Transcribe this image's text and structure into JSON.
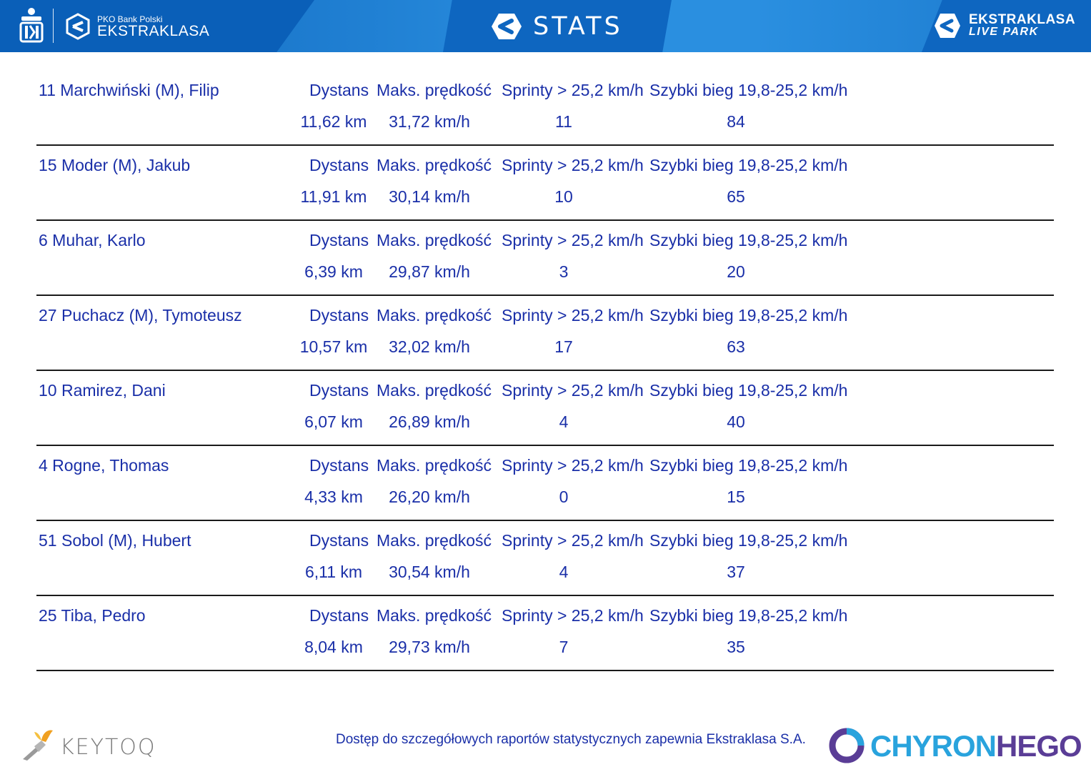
{
  "header": {
    "brand_small": "PKO Bank Polski",
    "brand_big": "EKSTRAKLASA",
    "title": "STATS",
    "live_line1": "EKSTRAKLASA",
    "live_line2": "LIVE PARK"
  },
  "column_labels": {
    "distance": "Dystans",
    "max_speed": "Maks. prędkość",
    "sprints": "Sprinty > 25,2 km/h",
    "fast_run": "Szybki bieg 19,8-25,2 km/h"
  },
  "players": [
    {
      "name": "11  Marchwiński (M), Filip",
      "distance": "11,62 km",
      "max_speed": "31,72 km/h",
      "sprints": "11",
      "fast_run": "84"
    },
    {
      "name": "15  Moder (M), Jakub",
      "distance": "11,91 km",
      "max_speed": "30,14 km/h",
      "sprints": "10",
      "fast_run": "65"
    },
    {
      "name": "6  Muhar, Karlo",
      "distance": "6,39 km",
      "max_speed": "29,87 km/h",
      "sprints": "3",
      "fast_run": "20"
    },
    {
      "name": "27  Puchacz (M), Tymoteusz",
      "distance": "10,57 km",
      "max_speed": "32,02 km/h",
      "sprints": "17",
      "fast_run": "63"
    },
    {
      "name": "10  Ramirez, Dani",
      "distance": "6,07 km",
      "max_speed": "26,89 km/h",
      "sprints": "4",
      "fast_run": "40"
    },
    {
      "name": "4  Rogne, Thomas",
      "distance": "4,33 km",
      "max_speed": "26,20 km/h",
      "sprints": "0",
      "fast_run": "15"
    },
    {
      "name": "51  Sobol (M), Hubert",
      "distance": "6,11 km",
      "max_speed": "30,54 km/h",
      "sprints": "4",
      "fast_run": "37"
    },
    {
      "name": "25  Tiba, Pedro",
      "distance": "8,04 km",
      "max_speed": "29,73 km/h",
      "sprints": "7",
      "fast_run": "35"
    }
  ],
  "footer": {
    "keytoq": "KEYTOQ",
    "note": "Dostęp do szczegółowych raportów statystycznych zapewnia Ekstraklasa S.A.",
    "chyron_part1": "CHYRON",
    "chyron_part2": "HEGO"
  },
  "colors": {
    "header_blue": "#0f6bc3",
    "text_blue": "#1a2fa8",
    "chyron_cyan": "#29a3dd",
    "chyron_purple": "#5a3d96"
  },
  "icons": [
    "pko-logo-icon",
    "ekstraklasa-logo-icon",
    "stats-logo-icon",
    "live-park-logo-icon",
    "keytoq-logo-icon",
    "chyronhego-logo-icon"
  ]
}
